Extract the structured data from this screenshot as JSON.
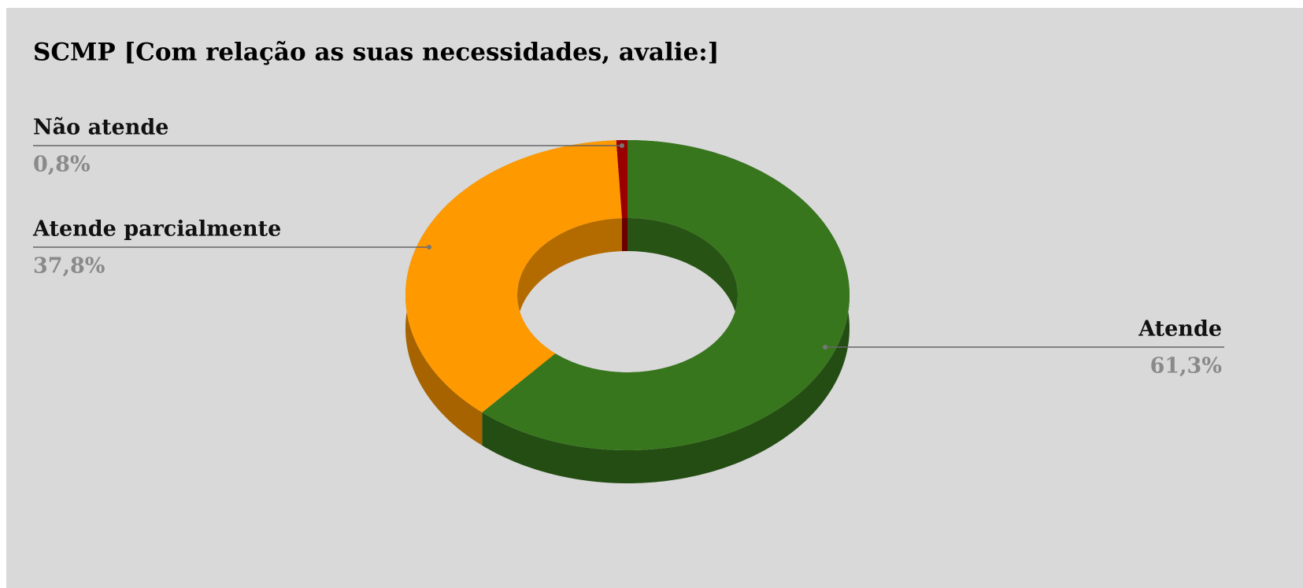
{
  "chart_data": {
    "type": "pie",
    "style": "3d-donut",
    "title": "SCMP [Com relação as suas necessidades, avalie:]",
    "categories": [
      "Atende",
      "Atende parcialmente",
      "Não atende"
    ],
    "values": [
      61.3,
      37.8,
      0.8
    ],
    "value_labels": [
      "61,3%",
      "37,8%",
      "0,8%"
    ],
    "colors": [
      "#38761d",
      "#ff9900",
      "#990000"
    ]
  }
}
